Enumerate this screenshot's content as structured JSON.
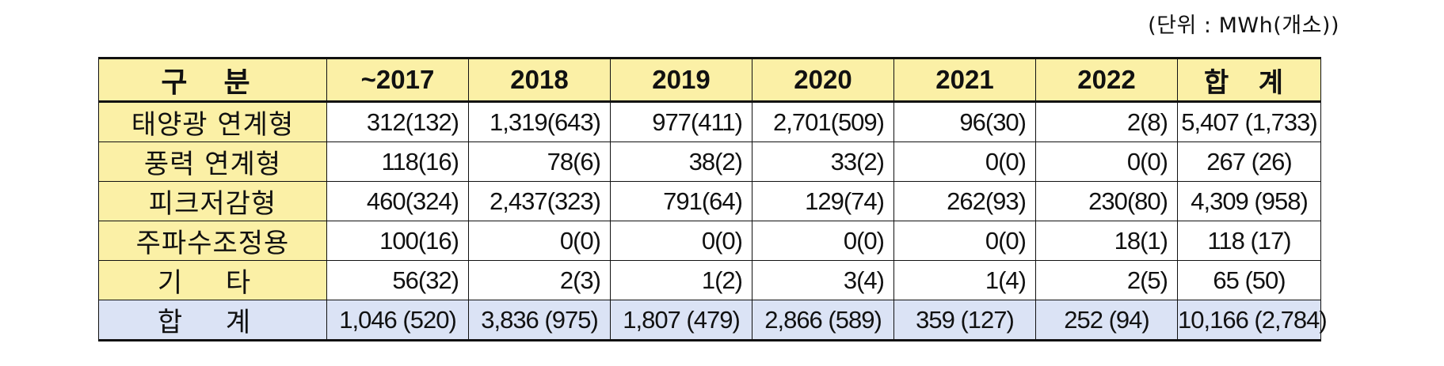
{
  "unit_label": "(단위 : MWh(개소))",
  "table": {
    "header": [
      "구 분",
      "~2017",
      "2018",
      "2019",
      "2020",
      "2021",
      "2022",
      "합 계"
    ],
    "rows": [
      {
        "label": "태양광 연계형",
        "cells": [
          "312(132)",
          "1,319(643)",
          "977(411)",
          "2,701(509)",
          "96(30)",
          "2(8)",
          "5,407 (1,733)"
        ]
      },
      {
        "label": "풍력 연계형",
        "cells": [
          "118(16)",
          "78(6)",
          "38(2)",
          "33(2)",
          "0(0)",
          "0(0)",
          "267 (26)"
        ]
      },
      {
        "label": "피크저감형",
        "cells": [
          "460(324)",
          "2,437(323)",
          "791(64)",
          "129(74)",
          "262(93)",
          "230(80)",
          "4,309 (958)"
        ]
      },
      {
        "label": "주파수조정용",
        "cells": [
          "100(16)",
          "0(0)",
          "0(0)",
          "0(0)",
          "0(0)",
          "18(1)",
          "118 (17)"
        ]
      },
      {
        "label": "기 타",
        "cells": [
          "56(32)",
          "2(3)",
          "1(2)",
          "3(4)",
          "1(4)",
          "2(5)",
          "65 (50)"
        ]
      }
    ],
    "total_row": {
      "label": "합 계",
      "cells": [
        "1,046 (520)",
        "3,836 (975)",
        "1,807 (479)",
        "2,866 (589)",
        "359 (127)",
        "252 (94)",
        "10,166 (2,784)"
      ]
    }
  }
}
